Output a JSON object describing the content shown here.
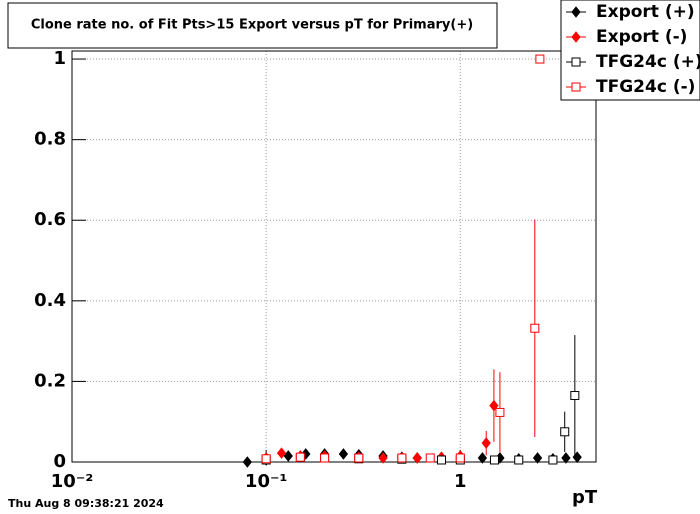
{
  "chart_data": {
    "type": "scatter",
    "title": "Clone rate no. of Fit Pts>15 Export versus pT for Primary(+)",
    "x_label": "pT",
    "timestamp": "Thu Aug  8 09:38:21 2024",
    "log_x": true,
    "grid": true,
    "xlim": [
      0.01,
      5
    ],
    "ylim": [
      0,
      1.02
    ],
    "xticks": [
      {
        "value": 0.01,
        "label": "10⁻²"
      },
      {
        "value": 0.1,
        "label": "10⁻¹"
      },
      1
    ],
    "yticks": [
      0,
      0.2,
      0.4,
      0.6,
      0.8,
      1
    ],
    "legend_position": "top-right",
    "series": [
      {
        "name": "Export (+)",
        "color": "#000000",
        "marker": "diamond",
        "filled": true,
        "x": [
          0.08,
          0.1,
          0.13,
          0.16,
          0.2,
          0.25,
          0.3,
          0.4,
          0.5,
          0.6,
          0.8,
          1.0,
          1.3,
          1.6,
          2.0,
          2.5,
          3.0,
          3.5,
          4.0
        ],
        "values": [
          0,
          0.005,
          0.015,
          0.02,
          0.02,
          0.02,
          0.018,
          0.015,
          0.012,
          0.01,
          0.01,
          0.008,
          0.01,
          0.01,
          0.008,
          0.01,
          0.008,
          0.01,
          0.012
        ],
        "errors": [
          null,
          null,
          null,
          null,
          null,
          null,
          null,
          null,
          null,
          null,
          null,
          null,
          null,
          null,
          null,
          null,
          null,
          null,
          null
        ]
      },
      {
        "name": "Export (-)",
        "color": "#ff0000",
        "marker": "diamond",
        "filled": true,
        "x": [
          0.1,
          0.12,
          0.15,
          0.2,
          0.3,
          0.4,
          0.5,
          0.6,
          0.8,
          1.0,
          1.36,
          1.49
        ],
        "values": [
          0.01,
          0.022,
          0.015,
          0.015,
          0.012,
          0.01,
          0.01,
          0.01,
          0.012,
          0.015,
          0.047,
          0.14
        ],
        "errors": [
          null,
          null,
          null,
          null,
          null,
          null,
          null,
          null,
          null,
          null,
          0.03,
          0.09
        ]
      },
      {
        "name": "TFG24c (+)",
        "color": "#000000",
        "marker": "square",
        "filled": false,
        "x": [
          0.1,
          0.15,
          0.2,
          0.3,
          0.5,
          0.8,
          1.0,
          1.5,
          2.0,
          3.0,
          3.45,
          3.89
        ],
        "values": [
          0.005,
          0.01,
          0.01,
          0.008,
          0.007,
          0.005,
          0.005,
          0.005,
          0.005,
          0.005,
          0.075,
          0.165
        ],
        "errors": [
          null,
          null,
          null,
          null,
          null,
          null,
          null,
          null,
          null,
          null,
          0.05,
          0.15
        ]
      },
      {
        "name": "TFG24c (-)",
        "color": "#ff0000",
        "marker": "square",
        "filled": false,
        "x": [
          0.1,
          0.15,
          0.2,
          0.3,
          0.5,
          0.7,
          1.0,
          1.6,
          2.42,
          2.57
        ],
        "values": [
          0.008,
          0.012,
          0.01,
          0.01,
          0.01,
          0.01,
          0.01,
          0.123,
          0.332,
          1
        ],
        "errors": [
          null,
          null,
          null,
          null,
          null,
          null,
          null,
          0.1,
          0.27,
          null
        ]
      }
    ]
  }
}
